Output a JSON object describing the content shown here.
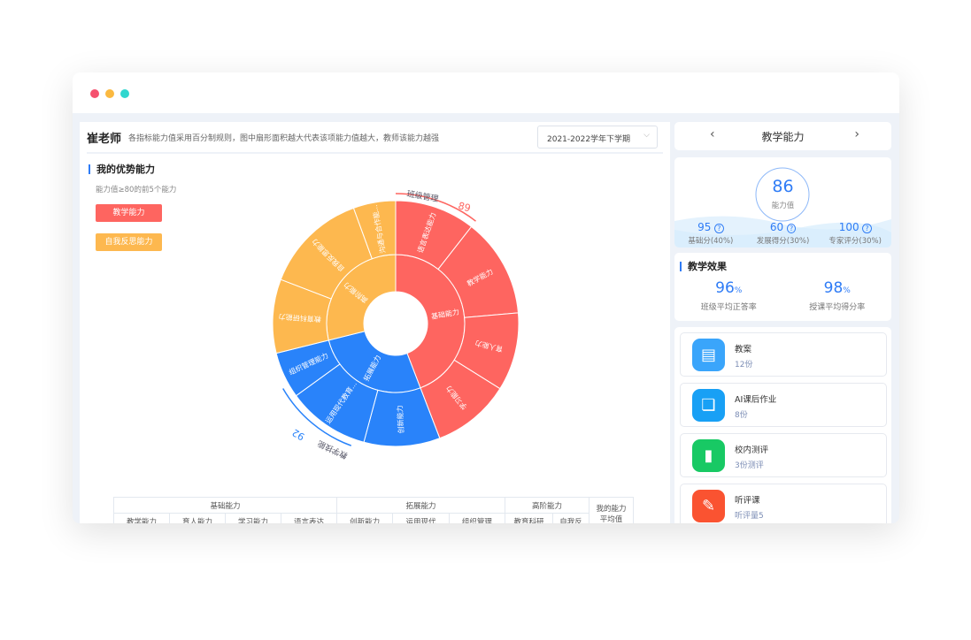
{
  "window": {
    "dots": [
      "#f5506e",
      "#fbb940",
      "#30d7cf"
    ]
  },
  "header": {
    "teacher": "崔老师",
    "description": "各指标能力值采用百分制规则，图中扇形面积越大代表该项能力值越大，教师该能力越强",
    "term": "2021-2022学年下学期"
  },
  "strengths": {
    "title": "我的优势能力",
    "subtitle": "能力值≥80的前5个能力",
    "tags": [
      {
        "label": "教学能力",
        "color": "#fe6560"
      },
      {
        "label": "自我反思能力",
        "color": "#fdb84f"
      }
    ]
  },
  "chart_data": {
    "type": "sunburst",
    "groups": [
      {
        "name": "基础能力",
        "color": "#fe6560",
        "children": [
          {
            "name": "语言表达能力",
            "value": 38
          },
          {
            "name": "教学能力",
            "value": 47
          },
          {
            "name": "育人能力",
            "value": 37
          },
          {
            "name": "学习能力",
            "value": 37
          }
        ]
      },
      {
        "name": "拓展能力",
        "color": "#2983fa",
        "children": [
          {
            "name": "创新能力",
            "value": 36
          },
          {
            "name": "运用现代教育...",
            "value": 39
          },
          {
            "name": "组织管理能力",
            "value": 22
          }
        ]
      },
      {
        "name": "高阶能力",
        "color": "#fdb84f",
        "children": [
          {
            "name": "教育科研能力",
            "value": 35
          },
          {
            "name": "自我反思能力",
            "value": 49
          },
          {
            "name": "沟通与合作能...",
            "value": 20
          }
        ]
      }
    ],
    "annotations": [
      {
        "label": "班级管理",
        "value": "89",
        "color": "#fe6560"
      },
      {
        "label": "教学技能",
        "value": "92",
        "color": "#2983fa"
      }
    ]
  },
  "table": {
    "groups": [
      "基础能力",
      "拓展能力",
      "高阶能力"
    ],
    "my_label": "我的能力",
    "my_sub": "平均值",
    "columns": [
      "教学能力",
      "育人能力",
      "学习能力",
      "语言表达",
      "创新能力",
      "运用现代",
      "组织管理",
      "教育科研",
      "自我反"
    ]
  },
  "ability": {
    "prev": "‹",
    "next": "›",
    "title": "教学能力",
    "score": "86",
    "score_label": "能力值",
    "parts": [
      {
        "value": "95",
        "label": "基础分(40%)"
      },
      {
        "value": "60",
        "label": "发展得分(30%)"
      },
      {
        "value": "100",
        "label": "专家评分(30%)"
      }
    ]
  },
  "effect": {
    "title": "教学效果",
    "items": [
      {
        "value": "96",
        "unit": "%",
        "label": "班级平均正答率"
      },
      {
        "value": "98",
        "unit": "%",
        "label": "授课平均得分率"
      }
    ]
  },
  "resources": [
    {
      "title": "教案",
      "sub": "12份",
      "icon": "book-icon",
      "color": "#3aa5fb",
      "glyph": "▤"
    },
    {
      "title": "AI课后作业",
      "sub": "8份",
      "icon": "open-book-icon",
      "color": "#18a0f5",
      "glyph": "❏"
    },
    {
      "title": "校内测评",
      "sub": "3份测评",
      "icon": "chart-icon",
      "color": "#18c964",
      "glyph": "▮"
    },
    {
      "title": "听评课",
      "sub": "听评量5",
      "icon": "teacher-icon",
      "color": "#fa5331",
      "glyph": "✎"
    }
  ]
}
